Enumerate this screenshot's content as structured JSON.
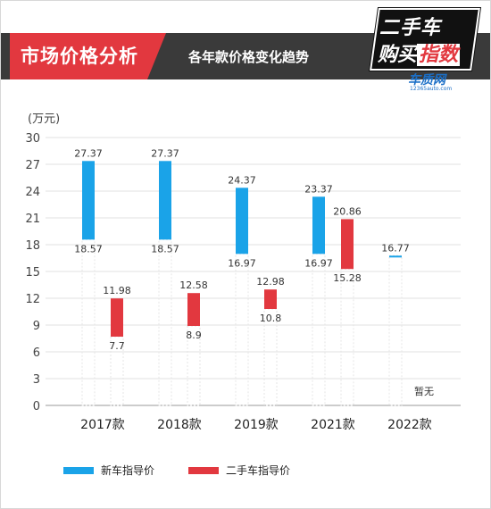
{
  "header": {
    "title": "市场价格分析",
    "subtitle": "各年款价格变化趋势"
  },
  "logo": {
    "line1": "二手车",
    "line2_a": "购买",
    "line2_b": "指数",
    "brand": "车质网",
    "url": "12365auto.com"
  },
  "colors": {
    "new": "#1aa3e8",
    "used": "#e2383f",
    "header_red": "#e2383f",
    "header_dark": "#3a3a3a"
  },
  "chart_data": {
    "type": "bar",
    "subtype": "floating range (min–max)",
    "ylabel": "(万元)",
    "ylim": [
      0,
      30
    ],
    "yticks": [
      0,
      3,
      6,
      9,
      12,
      15,
      18,
      21,
      24,
      27,
      30
    ],
    "grid": true,
    "legend_position": "bottom",
    "categories": [
      "2017款",
      "2018款",
      "2019款",
      "2021款",
      "2022款"
    ],
    "series": [
      {
        "name": "新车指导价",
        "low": [
          "18.57",
          "18.57",
          "16.97",
          "16.97",
          "16.77"
        ],
        "high": [
          "27.37",
          "27.37",
          "24.37",
          "23.37",
          "16.77"
        ]
      },
      {
        "name": "二手车指导价",
        "low": [
          "7.7",
          "8.9",
          "10.8",
          "15.28",
          null
        ],
        "high": [
          "11.98",
          "12.58",
          "12.98",
          "20.86",
          null
        ]
      }
    ],
    "annotations": [
      {
        "category": "2022款",
        "series": "二手车指导价",
        "text": "暂无"
      }
    ]
  }
}
